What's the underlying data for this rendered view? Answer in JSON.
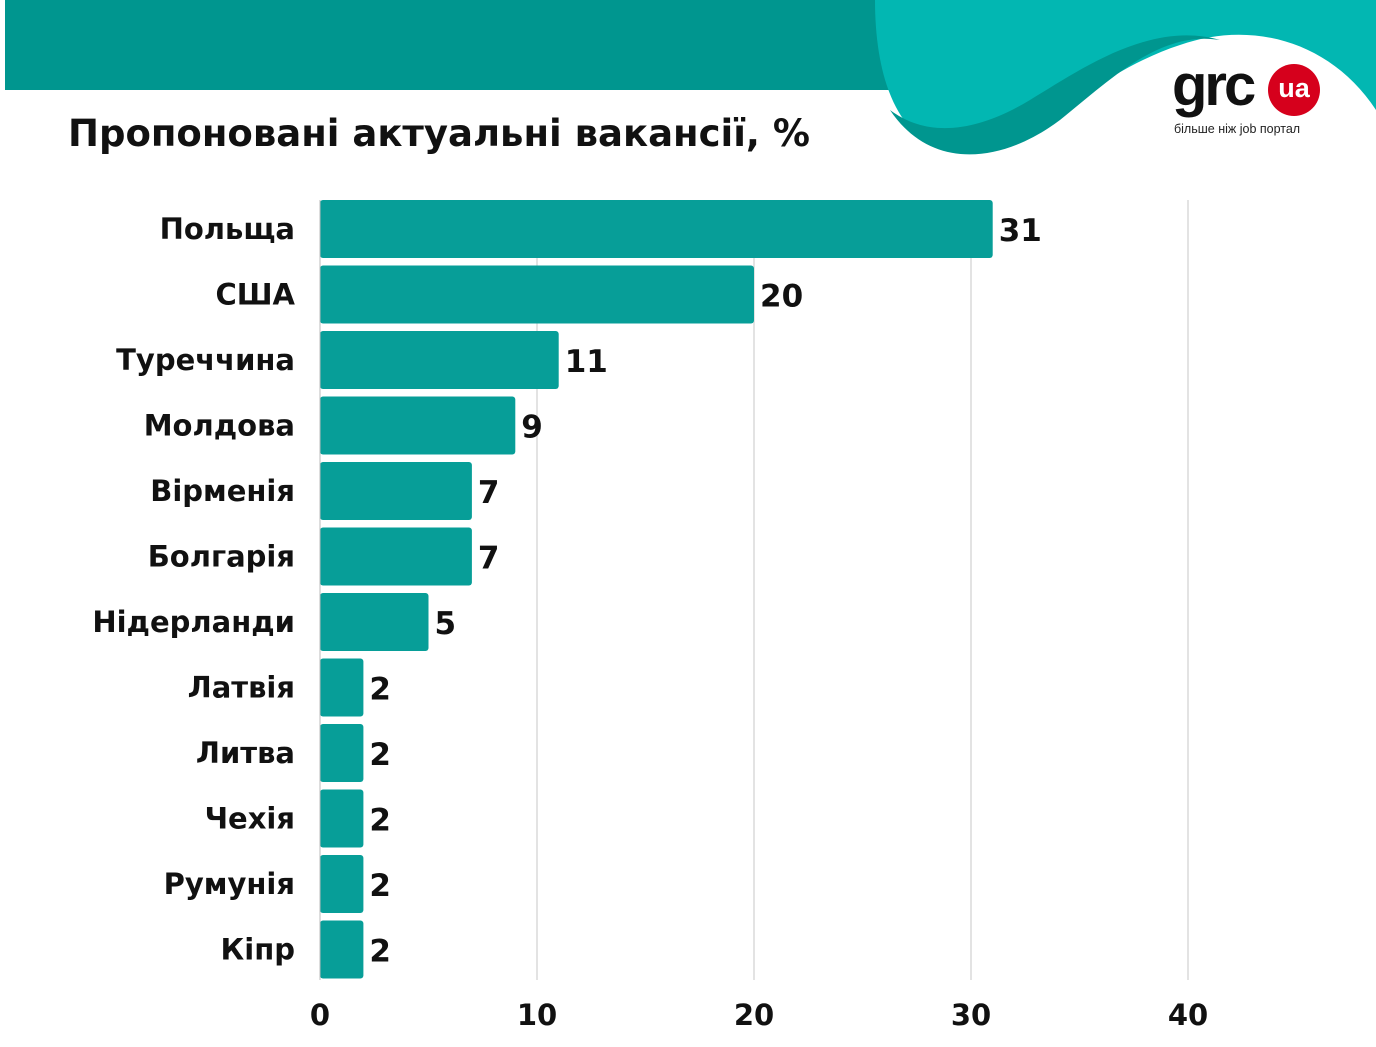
{
  "colors": {
    "bar": "#079e98",
    "header_dark": "#00968f",
    "header_light": "#02b7b2",
    "logo_red": "#d6001c",
    "grid": "#d4d4d4"
  },
  "logo": {
    "text": "grc",
    "badge": "ua",
    "tagline": "більше ніж job портал"
  },
  "chart_data": {
    "type": "bar",
    "orientation": "horizontal",
    "title": "Пропоновані актуальні вакансії, %",
    "categories": [
      "Польща",
      "США",
      "Туреччина",
      "Молдова",
      "Вірменія",
      "Болгарія",
      "Нідерланди",
      "Латвія",
      "Литва",
      "Чехія",
      "Румунія",
      "Кіпр"
    ],
    "values": [
      31,
      20,
      11,
      9,
      7,
      7,
      5,
      2,
      2,
      2,
      2,
      2
    ],
    "xlim": [
      0,
      40
    ],
    "xticks": [
      "0",
      "10",
      "20",
      "30",
      "40"
    ],
    "xlabel": "",
    "ylabel": "",
    "grid": true
  }
}
